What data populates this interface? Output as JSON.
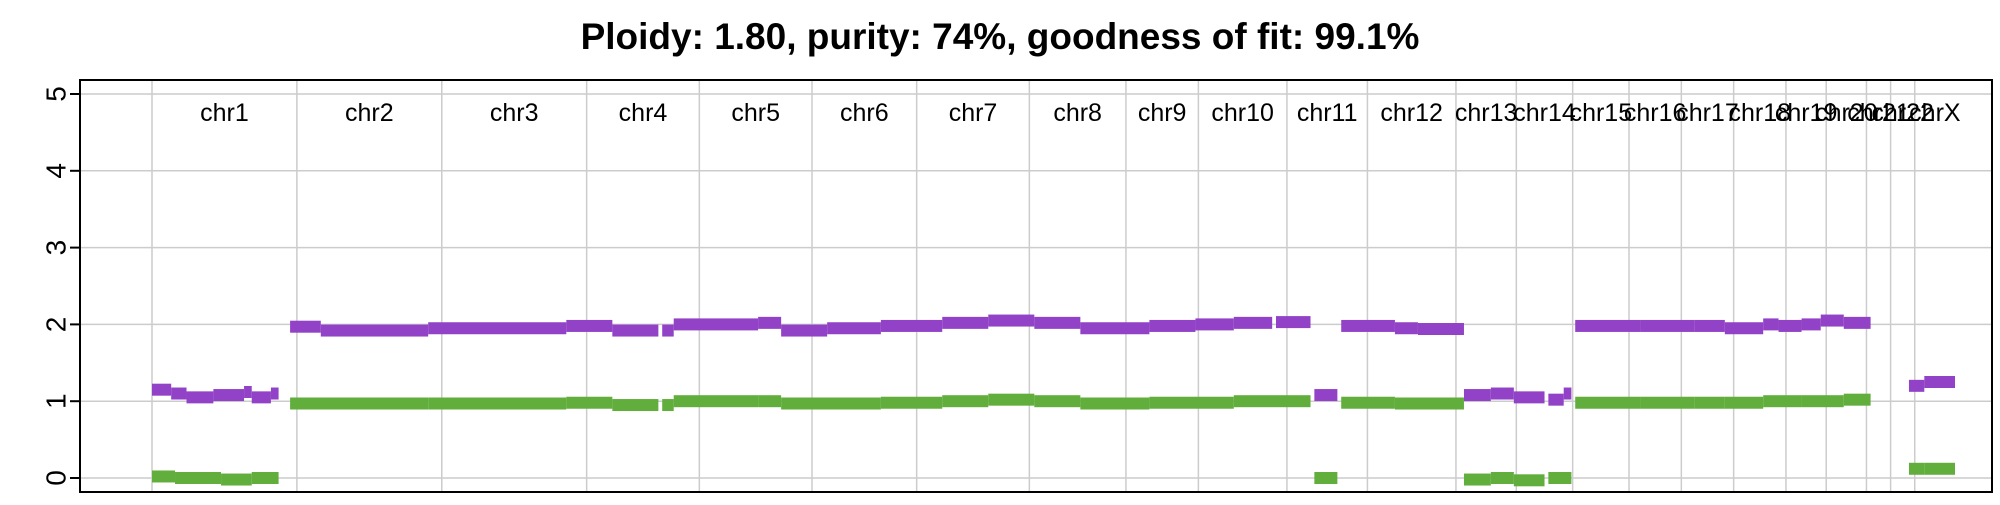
{
  "chart_data": {
    "type": "line",
    "title": "Ploidy: 1.80, purity: 74%, goodness of fit: 99.1%",
    "xlabel": "",
    "ylabel": "",
    "ylim": [
      0,
      5
    ],
    "y_ticks": [
      "0",
      "1",
      "2",
      "3",
      "4",
      "5"
    ],
    "grid": true,
    "legend": "none",
    "chromosomes": [
      {
        "name": "chr1",
        "start": 0.0,
        "end": 1.8
      },
      {
        "name": "chr2",
        "start": 1.8,
        "end": 3.6
      },
      {
        "name": "chr3",
        "start": 3.6,
        "end": 5.4
      },
      {
        "name": "chr4",
        "start": 5.4,
        "end": 6.8
      },
      {
        "name": "chr5",
        "start": 6.8,
        "end": 8.2
      },
      {
        "name": "chr6",
        "start": 8.2,
        "end": 9.5
      },
      {
        "name": "chr7",
        "start": 9.5,
        "end": 10.9
      },
      {
        "name": "chr8",
        "start": 10.9,
        "end": 12.1
      },
      {
        "name": "chr9",
        "start": 12.1,
        "end": 13.0
      },
      {
        "name": "chr10",
        "start": 13.0,
        "end": 14.1
      },
      {
        "name": "chr11",
        "start": 14.1,
        "end": 15.1
      },
      {
        "name": "chr12",
        "start": 15.1,
        "end": 16.2
      },
      {
        "name": "chr13",
        "start": 16.2,
        "end": 16.95
      },
      {
        "name": "chr14",
        "start": 16.95,
        "end": 17.65
      },
      {
        "name": "chr15",
        "start": 17.65,
        "end": 18.35
      },
      {
        "name": "chr16",
        "start": 18.35,
        "end": 19.0
      },
      {
        "name": "chr17",
        "start": 19.0,
        "end": 19.65
      },
      {
        "name": "chr18",
        "start": 19.65,
        "end": 20.3
      },
      {
        "name": "chr19",
        "start": 20.3,
        "end": 20.8
      },
      {
        "name": "chr20",
        "start": 20.8,
        "end": 21.3
      },
      {
        "name": "chr21",
        "start": 21.3,
        "end": 21.6
      },
      {
        "name": "chr22",
        "start": 21.6,
        "end": 21.9
      },
      {
        "name": "chrX",
        "start": 21.9,
        "end": 22.4
      }
    ],
    "x_range": [
      -0.4,
      22.6
    ],
    "colors": {
      "total": "#9242C6",
      "minor": "#62AE3C",
      "grid": "#CCCCCC"
    },
    "series": [
      {
        "name": "",
        "color": "#9242C6",
        "segments": [
          [
            0.0,
            0.25,
            1.15
          ],
          [
            0.25,
            0.45,
            1.1
          ],
          [
            0.45,
            0.8,
            1.05
          ],
          [
            0.8,
            1.2,
            1.08
          ],
          [
            1.2,
            1.3,
            1.12
          ],
          [
            1.3,
            1.55,
            1.05
          ],
          [
            1.55,
            1.65,
            1.1
          ],
          [
            1.8,
            2.2,
            1.97
          ],
          [
            2.2,
            3.6,
            1.92
          ],
          [
            3.6,
            5.4,
            1.95
          ],
          [
            5.4,
            6.0,
            1.98
          ],
          [
            6.0,
            6.6,
            1.92
          ],
          [
            6.65,
            6.8,
            1.92
          ],
          [
            6.8,
            7.9,
            2.0
          ],
          [
            7.9,
            8.2,
            2.02
          ],
          [
            8.2,
            8.8,
            1.92
          ],
          [
            8.8,
            9.5,
            1.95
          ],
          [
            9.5,
            10.3,
            1.98
          ],
          [
            10.3,
            10.9,
            2.02
          ],
          [
            10.9,
            11.5,
            2.05
          ],
          [
            11.5,
            12.1,
            2.02
          ],
          [
            12.1,
            13.0,
            1.95
          ],
          [
            13.0,
            13.6,
            1.98
          ],
          [
            13.6,
            14.1,
            2.0
          ],
          [
            14.1,
            14.6,
            2.02
          ],
          [
            14.65,
            15.1,
            2.03
          ],
          [
            15.15,
            15.45,
            1.08
          ],
          [
            15.5,
            16.2,
            1.98
          ],
          [
            16.2,
            16.5,
            1.95
          ],
          [
            16.5,
            17.1,
            1.94
          ],
          [
            17.1,
            17.45,
            1.08
          ],
          [
            17.45,
            17.75,
            1.1
          ],
          [
            17.75,
            18.15,
            1.05
          ],
          [
            18.2,
            18.4,
            1.02
          ],
          [
            18.4,
            18.5,
            1.1
          ],
          [
            18.55,
            19.4,
            1.98
          ],
          [
            19.4,
            20.1,
            1.98
          ],
          [
            20.1,
            20.5,
            1.98
          ],
          [
            20.5,
            21.0,
            1.95
          ],
          [
            21.0,
            21.2,
            2.0
          ],
          [
            21.2,
            21.5,
            1.98
          ],
          [
            21.5,
            21.75,
            2.0
          ],
          [
            21.75,
            22.05,
            2.05
          ],
          [
            22.05,
            22.4,
            2.02
          ],
          [
            22.9,
            23.1,
            1.2
          ],
          [
            23.1,
            23.5,
            1.25
          ]
        ]
      },
      {
        "name": "",
        "color": "#62AE3C",
        "segments": [
          [
            0.0,
            0.3,
            0.02
          ],
          [
            0.3,
            0.9,
            0.0
          ],
          [
            0.9,
            1.3,
            -0.02
          ],
          [
            1.3,
            1.65,
            0.0
          ],
          [
            1.8,
            3.6,
            0.97
          ],
          [
            3.6,
            5.4,
            0.97
          ],
          [
            5.4,
            6.0,
            0.98
          ],
          [
            6.0,
            6.6,
            0.95
          ],
          [
            6.65,
            6.8,
            0.95
          ],
          [
            6.8,
            7.9,
            1.0
          ],
          [
            7.9,
            8.2,
            1.0
          ],
          [
            8.2,
            9.5,
            0.97
          ],
          [
            9.5,
            10.3,
            0.98
          ],
          [
            10.3,
            10.9,
            1.0
          ],
          [
            10.9,
            11.5,
            1.02
          ],
          [
            11.5,
            12.1,
            1.0
          ],
          [
            12.1,
            13.0,
            0.97
          ],
          [
            13.0,
            14.1,
            0.98
          ],
          [
            14.1,
            15.1,
            1.0
          ],
          [
            15.15,
            15.45,
            0.0
          ],
          [
            15.5,
            16.2,
            0.98
          ],
          [
            16.2,
            17.1,
            0.97
          ],
          [
            17.1,
            17.45,
            -0.02
          ],
          [
            17.45,
            17.75,
            0.0
          ],
          [
            17.75,
            18.15,
            -0.03
          ],
          [
            18.2,
            18.5,
            0.0
          ],
          [
            18.55,
            19.4,
            0.98
          ],
          [
            19.4,
            20.1,
            0.98
          ],
          [
            20.1,
            20.5,
            0.98
          ],
          [
            20.5,
            21.0,
            0.98
          ],
          [
            21.0,
            21.5,
            1.0
          ],
          [
            21.5,
            22.05,
            1.0
          ],
          [
            22.05,
            22.4,
            1.02
          ],
          [
            22.9,
            23.1,
            0.12
          ],
          [
            23.1,
            23.5,
            0.12
          ]
        ]
      }
    ]
  }
}
